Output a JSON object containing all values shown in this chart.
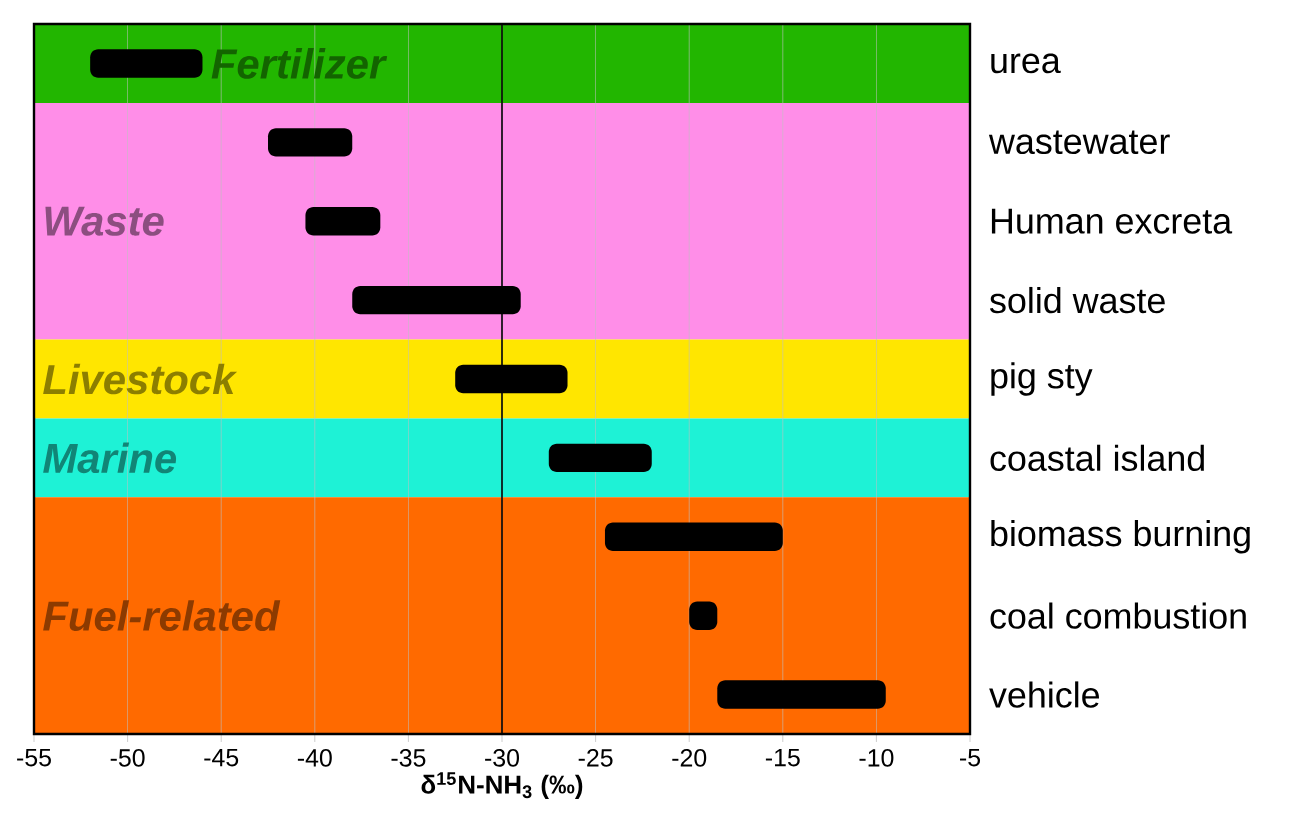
{
  "chart_data": {
    "type": "bar",
    "orientation": "horizontal",
    "xlabel": "δ$^{15}$N-NH$_{3}$ (‰)",
    "categories": [
      "urea",
      "wastewater",
      "Human excreta",
      "solid waste",
      "pig sty",
      "coastal island",
      "biomass burning",
      "coal combustion",
      "vehicle"
    ],
    "base": [
      -52,
      -42.5,
      -40.5,
      -38,
      -32.5,
      -27.5,
      -24.5,
      -20,
      -18.5
    ],
    "values": [
      6,
      4.5,
      4,
      9,
      6,
      5.5,
      9.5,
      1.5,
      9
    ],
    "color": "#000000",
    "xlim": [
      -55,
      -5
    ],
    "xticks": [
      -55,
      -50,
      -45,
      -40,
      -35,
      -30,
      -25,
      -20,
      -15,
      -10,
      -5
    ],
    "grid": "x",
    "ref_lines": [
      {
        "axis": "x",
        "value": -30,
        "color": "#000000"
      }
    ],
    "bands": [
      {
        "axis": "y",
        "from": "urea",
        "to": "urea",
        "label": "Fertilizer",
        "color": "#22b600"
      },
      {
        "axis": "y",
        "from": "wastewater",
        "to": "solid waste",
        "label": "Waste",
        "color": "#ff8ee8"
      },
      {
        "axis": "y",
        "from": "pig sty",
        "to": "pig sty",
        "label": "Livestock",
        "color": "#ffe600"
      },
      {
        "axis": "y",
        "from": "coastal island",
        "to": "coastal island",
        "label": "Marine",
        "color": "#1ef2d6"
      },
      {
        "axis": "y",
        "from": "biomass burning",
        "to": "vehicle",
        "label": "Fuel-related",
        "color": "#ff6a00"
      }
    ]
  }
}
